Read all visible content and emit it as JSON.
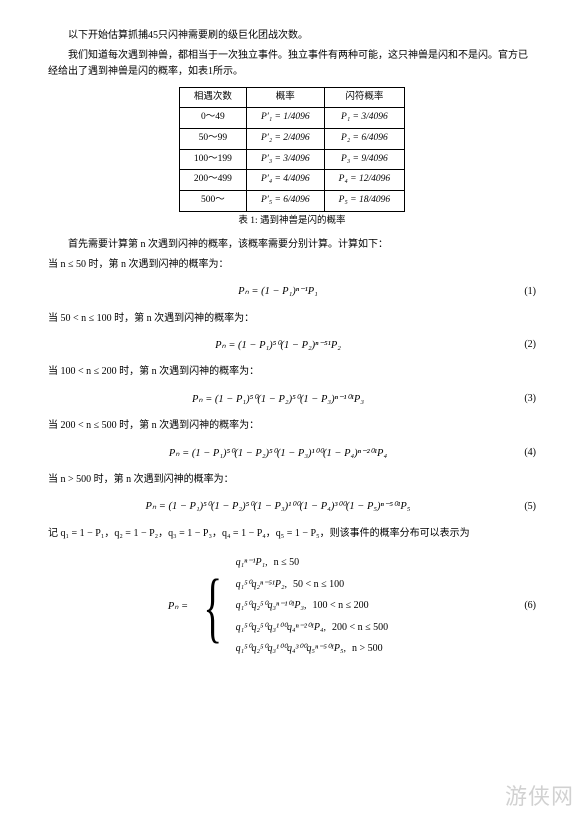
{
  "intro": {
    "p1": "以下开始估算抓捕45只闪神需要刷的级巨化团战次数。",
    "p2": "我们知道每次遇到神兽，都相当于一次独立事件。独立事件有两种可能，这只神兽是闪和不是闪。官方已经给出了遇到神兽是闪的概率，如表1所示。"
  },
  "table": {
    "headers": [
      "相遇次数",
      "概率",
      "闪符概率"
    ],
    "rows": [
      [
        "0～49",
        "P′₁ = 1/4096",
        "P₁ = 3/4096"
      ],
      [
        "50～99",
        "P′₂ = 2/4096",
        "P₂ = 6/4096"
      ],
      [
        "100～199",
        "P′₃ = 3/4096",
        "P₃ = 9/4096"
      ],
      [
        "200～499",
        "P′₄ = 4/4096",
        "P₄ = 12/4096"
      ],
      [
        "500～",
        "P′₅ = 6/4096",
        "P₅ = 18/4096"
      ]
    ],
    "caption": "表 1: 遇到神兽是闪的概率"
  },
  "calc_intro": {
    "l1": "首先需要计算第 n 次遇到闪神的概率，该概率需要分别计算。计算如下：",
    "l2": "当 n ≤ 50 时，第 n 次遇到闪神的概率为："
  },
  "eq1": {
    "tex": "Pₙ = (1 − P₁)ⁿ⁻¹P₁",
    "num": "(1)"
  },
  "case2": "当 50 < n ≤ 100 时，第 n 次遇到闪神的概率为：",
  "eq2": {
    "tex": "Pₙ = (1 − P₁)⁵⁰(1 − P₂)ⁿ⁻⁵¹P₂",
    "num": "(2)"
  },
  "case3": "当 100 < n ≤ 200 时，第 n 次遇到闪神的概率为：",
  "eq3": {
    "tex": "Pₙ = (1 − P₁)⁵⁰(1 − P₂)⁵⁰(1 − P₃)ⁿ⁻¹⁰¹P₃",
    "num": "(3)"
  },
  "case4": "当 200 < n ≤ 500 时，第 n 次遇到闪神的概率为：",
  "eq4": {
    "tex": "Pₙ = (1 − P₁)⁵⁰(1 − P₂)⁵⁰(1 − P₃)¹⁰⁰(1 − P₄)ⁿ⁻²⁰¹P₄",
    "num": "(4)"
  },
  "case5": "当 n > 500 时，第 n 次遇到闪神的概率为：",
  "eq5": {
    "tex": "Pₙ = (1 − P₁)⁵⁰(1 − P₂)⁵⁰(1 − P₃)¹⁰⁰(1 − P₄)³⁰⁰(1 − P₅)ⁿ⁻⁵⁰¹P₅",
    "num": "(5)"
  },
  "subst": "记 q₁ = 1 − P₁，q₂ = 1 − P₂，q₃ = 1 − P₃，q₄ = 1 − P₄，q₅ = 1 − P₅，则该事件的概率分布可以表示为",
  "piecewise": {
    "lhs": "Pₙ =",
    "rows": [
      {
        "expr": "q₁ⁿ⁻¹P₁,",
        "cond": "n ≤ 50"
      },
      {
        "expr": "q₁⁵⁰q₂ⁿ⁻⁵¹P₂,",
        "cond": "50 < n ≤ 100"
      },
      {
        "expr": "q₁⁵⁰q₂⁵⁰q₃ⁿ⁻¹⁰¹P₃,",
        "cond": "100 < n ≤ 200"
      },
      {
        "expr": "q₁⁵⁰q₂⁵⁰q₃¹⁰⁰q₄ⁿ⁻²⁰¹P₄,",
        "cond": "200 < n ≤ 500"
      },
      {
        "expr": "q₁⁵⁰q₂⁵⁰q₃¹⁰⁰q₄³⁰⁰q₅ⁿ⁻⁵⁰¹P₅,",
        "cond": "n > 500"
      }
    ],
    "num": "(6)"
  },
  "watermark": "游侠网"
}
